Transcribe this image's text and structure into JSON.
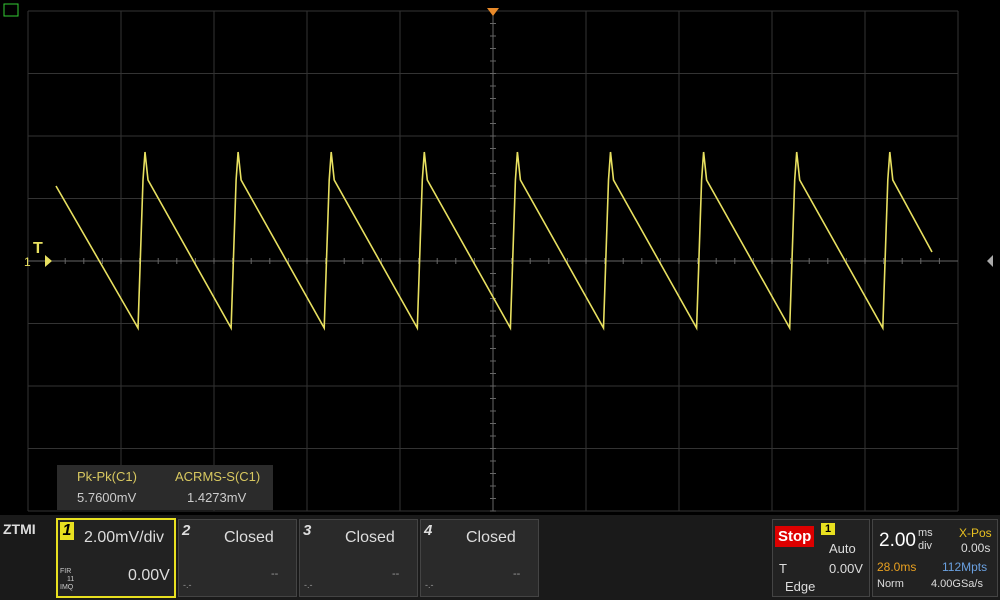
{
  "measurements": [
    {
      "label": "Pk-Pk(C1)",
      "value": "5.7600mV"
    },
    {
      "label": "ACRMS-S(C1)",
      "value": "1.4273mV"
    }
  ],
  "brand": "ZTMI",
  "trace_marker": {
    "trigger_label": "T",
    "channel_label": "1"
  },
  "channels": [
    {
      "number": "1",
      "scale": "2.00mV/div",
      "offset": "0.00V",
      "filter": "FIR",
      "filter_value": "11",
      "mode": "IMQ"
    },
    {
      "number": "2",
      "status": "Closed",
      "offset": "--",
      "probe": "-.-"
    },
    {
      "number": "3",
      "status": "Closed",
      "offset": "--",
      "probe": "-.-"
    },
    {
      "number": "4",
      "status": "Closed",
      "offset": "--",
      "probe": "-.-"
    }
  ],
  "trigger": {
    "state": "Stop",
    "source": "1",
    "mode": "Auto",
    "label": "T",
    "level": "0.00V",
    "type": "Edge"
  },
  "timebase": {
    "scale": "2.00",
    "unit_top": "ms",
    "unit_bottom": "div",
    "xpos_label": "X-Pos",
    "xpos": "0.00s",
    "record_time": "28.0ms",
    "memory": "112Mpts",
    "acq_mode": "Norm",
    "sample_rate": "4.00GSa/s"
  }
}
